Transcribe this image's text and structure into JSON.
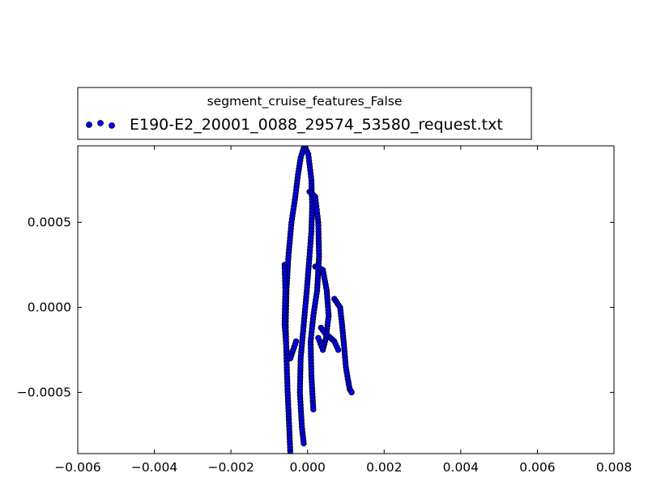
{
  "chart_data": {
    "type": "scatter",
    "title": "",
    "xlabel": "",
    "ylabel": "",
    "xlim": [
      -0.006,
      0.008
    ],
    "ylim": [
      -0.00086,
      0.00095
    ],
    "x_ticks": [
      -0.006,
      -0.004,
      -0.002,
      0.0,
      0.002,
      0.004,
      0.006,
      0.008
    ],
    "x_tick_labels": [
      "−0.006",
      "−0.004",
      "−0.002",
      "0.000",
      "0.002",
      "0.004",
      "0.006",
      "0.008"
    ],
    "y_ticks": [
      0.0005,
      0.0,
      -0.0005
    ],
    "y_tick_labels": [
      "0.0005",
      "0.0000",
      "−0.0005"
    ],
    "grid": false,
    "legend": {
      "title": "segment_cruise_features_False",
      "placement": "above plot, upper-left",
      "entries": [
        "E190-E2_20001_0088_29574_53580_request.txt"
      ]
    },
    "series": [
      {
        "name": "E190-E2_20001_0088_29574_53580_request.txt",
        "color": "#0000ff",
        "edgecolor": "#000000",
        "marker": "circle",
        "paths": [
          [
            [
              -0.00045,
              -0.00086
            ],
            [
              -0.00048,
              -0.0007
            ],
            [
              -0.00052,
              -0.0005
            ],
            [
              -0.00055,
              -0.0003
            ],
            [
              -0.00057,
              -0.0001
            ],
            [
              -0.00055,
              0.0001
            ],
            [
              -0.0005,
              0.0003
            ],
            [
              -0.00042,
              0.0005
            ],
            [
              -0.00032,
              0.00065
            ],
            [
              -0.00025,
              0.00078
            ],
            [
              -0.00018,
              0.00088
            ],
            [
              -8e-05,
              0.00095
            ]
          ],
          [
            [
              -8e-05,
              0.00095
            ],
            [
              2e-05,
              0.0009
            ],
            [
              0.0001,
              0.00075
            ],
            [
              0.00012,
              0.0006
            ],
            [
              0.0001,
              0.00045
            ],
            [
              5e-05,
              0.0003
            ],
            [
              -2e-05,
              0.0001
            ],
            [
              -0.0001,
              -0.0001
            ],
            [
              -0.00018,
              -0.0003
            ],
            [
              -0.0002,
              -0.0005
            ],
            [
              -0.00015,
              -0.0007
            ],
            [
              -0.0001,
              -0.0008
            ]
          ],
          [
            [
              5e-05,
              0.00068
            ],
            [
              0.0002,
              0.00065
            ],
            [
              0.00028,
              0.0005
            ],
            [
              0.0003,
              0.0003
            ],
            [
              0.00025,
              0.0001
            ],
            [
              0.00015,
              -5e-05
            ],
            [
              8e-05,
              -0.0002
            ],
            [
              0.0001,
              -0.0004
            ],
            [
              0.00015,
              -0.0006
            ]
          ],
          [
            [
              0.0002,
              0.00024
            ],
            [
              0.0004,
              0.00022
            ],
            [
              0.0005,
              0.0001
            ],
            [
              0.00055,
              -5e-05
            ],
            [
              0.00048,
              -0.00018
            ],
            [
              0.0004,
              -0.00025
            ],
            [
              0.00028,
              -0.00018
            ]
          ],
          [
            [
              -0.0006,
              0.00025
            ],
            [
              -0.00058,
              0.0001
            ],
            [
              -0.0006,
              -0.0001
            ],
            [
              -0.00055,
              -0.00025
            ],
            [
              -0.00045,
              -0.0003
            ],
            [
              -0.0003,
              -0.0002
            ]
          ],
          [
            [
              0.0007,
              5e-05
            ],
            [
              0.00085,
              0.0
            ],
            [
              0.0009,
              -0.0001
            ],
            [
              0.00095,
              -0.00022
            ],
            [
              0.001,
              -0.00035
            ],
            [
              0.00105,
              -0.00042
            ],
            [
              0.0011,
              -0.00048
            ],
            [
              0.00115,
              -0.0005
            ]
          ],
          [
            [
              0.00035,
              -0.00012
            ],
            [
              0.00045,
              -0.00015
            ],
            [
              0.0006,
              -0.00018
            ],
            [
              0.0007,
              -0.0002
            ],
            [
              0.0008,
              -0.00025
            ]
          ]
        ]
      }
    ]
  }
}
